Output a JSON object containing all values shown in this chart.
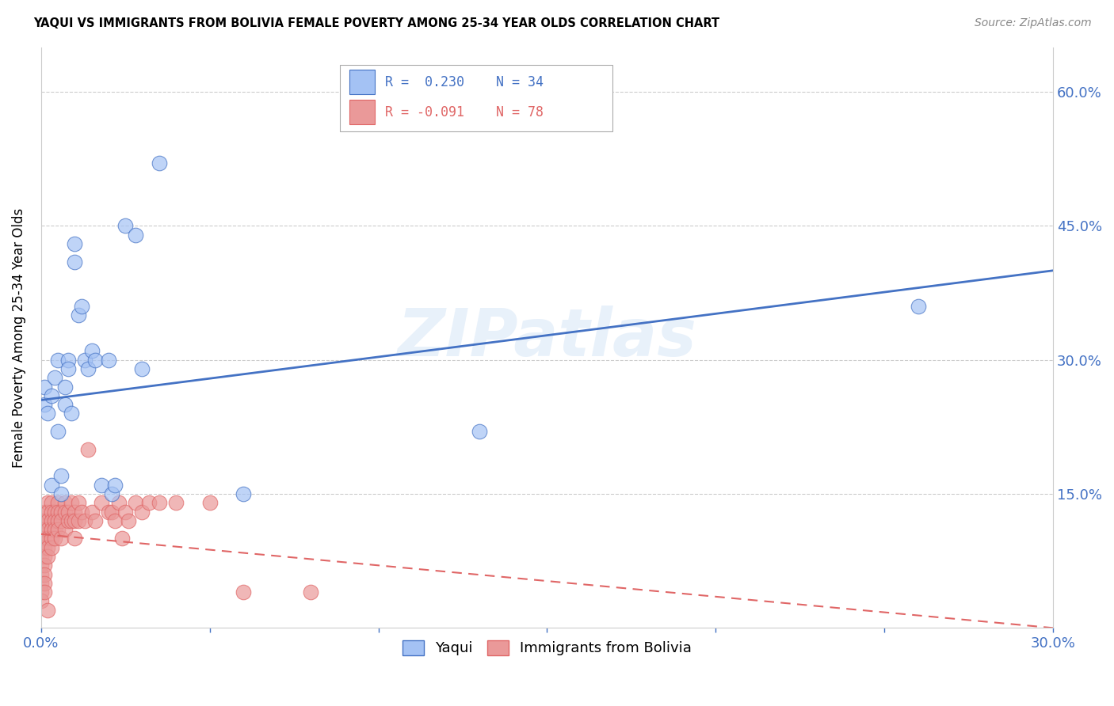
{
  "title": "YAQUI VS IMMIGRANTS FROM BOLIVIA FEMALE POVERTY AMONG 25-34 YEAR OLDS CORRELATION CHART",
  "source": "Source: ZipAtlas.com",
  "ylabel": "Female Poverty Among 25-34 Year Olds",
  "xlim": [
    0.0,
    0.3
  ],
  "ylim": [
    0.0,
    0.65
  ],
  "yaqui_color": "#a4c2f4",
  "bolivia_color": "#ea9999",
  "trendline_yaqui_color": "#4472c4",
  "trendline_bolivia_color": "#e06666",
  "background_color": "#ffffff",
  "watermark": "ZIPatlas",
  "legend_R_yaqui": "R =  0.230",
  "legend_N_yaqui": "N = 34",
  "legend_R_bolivia": "R = -0.091",
  "legend_N_bolivia": "N = 78",
  "yaqui_x": [
    0.001,
    0.001,
    0.002,
    0.003,
    0.003,
    0.004,
    0.005,
    0.005,
    0.006,
    0.006,
    0.007,
    0.007,
    0.008,
    0.008,
    0.009,
    0.01,
    0.01,
    0.011,
    0.012,
    0.013,
    0.014,
    0.015,
    0.016,
    0.018,
    0.02,
    0.021,
    0.022,
    0.025,
    0.028,
    0.03,
    0.035,
    0.06,
    0.13,
    0.26
  ],
  "yaqui_y": [
    0.25,
    0.27,
    0.24,
    0.26,
    0.16,
    0.28,
    0.3,
    0.22,
    0.15,
    0.17,
    0.25,
    0.27,
    0.3,
    0.29,
    0.24,
    0.43,
    0.41,
    0.35,
    0.36,
    0.3,
    0.29,
    0.31,
    0.3,
    0.16,
    0.3,
    0.15,
    0.16,
    0.45,
    0.44,
    0.29,
    0.52,
    0.15,
    0.22,
    0.36
  ],
  "bolivia_x": [
    0.0,
    0.0,
    0.0,
    0.0,
    0.0,
    0.0,
    0.0,
    0.0,
    0.0,
    0.0,
    0.001,
    0.001,
    0.001,
    0.001,
    0.001,
    0.001,
    0.001,
    0.001,
    0.001,
    0.001,
    0.002,
    0.002,
    0.002,
    0.002,
    0.002,
    0.002,
    0.002,
    0.002,
    0.003,
    0.003,
    0.003,
    0.003,
    0.003,
    0.003,
    0.004,
    0.004,
    0.004,
    0.004,
    0.005,
    0.005,
    0.005,
    0.005,
    0.006,
    0.006,
    0.006,
    0.007,
    0.007,
    0.007,
    0.008,
    0.008,
    0.009,
    0.009,
    0.01,
    0.01,
    0.01,
    0.011,
    0.011,
    0.012,
    0.013,
    0.014,
    0.015,
    0.016,
    0.018,
    0.02,
    0.021,
    0.022,
    0.023,
    0.024,
    0.025,
    0.026,
    0.028,
    0.03,
    0.032,
    0.035,
    0.04,
    0.05,
    0.06,
    0.08
  ],
  "bolivia_y": [
    0.12,
    0.11,
    0.1,
    0.09,
    0.08,
    0.07,
    0.06,
    0.05,
    0.04,
    0.03,
    0.13,
    0.12,
    0.11,
    0.1,
    0.09,
    0.08,
    0.07,
    0.06,
    0.05,
    0.04,
    0.14,
    0.13,
    0.12,
    0.11,
    0.1,
    0.09,
    0.08,
    0.02,
    0.14,
    0.13,
    0.12,
    0.11,
    0.1,
    0.09,
    0.13,
    0.12,
    0.11,
    0.1,
    0.14,
    0.13,
    0.12,
    0.11,
    0.13,
    0.12,
    0.1,
    0.14,
    0.13,
    0.11,
    0.13,
    0.12,
    0.14,
    0.12,
    0.13,
    0.12,
    0.1,
    0.14,
    0.12,
    0.13,
    0.12,
    0.2,
    0.13,
    0.12,
    0.14,
    0.13,
    0.13,
    0.12,
    0.14,
    0.1,
    0.13,
    0.12,
    0.14,
    0.13,
    0.14,
    0.14,
    0.14,
    0.14,
    0.04,
    0.04
  ],
  "yaqui_trendline_x": [
    0.0,
    0.3
  ],
  "yaqui_trendline_y": [
    0.255,
    0.4
  ],
  "bolivia_trendline_x": [
    0.0,
    0.3
  ],
  "bolivia_trendline_y": [
    0.105,
    0.0
  ]
}
